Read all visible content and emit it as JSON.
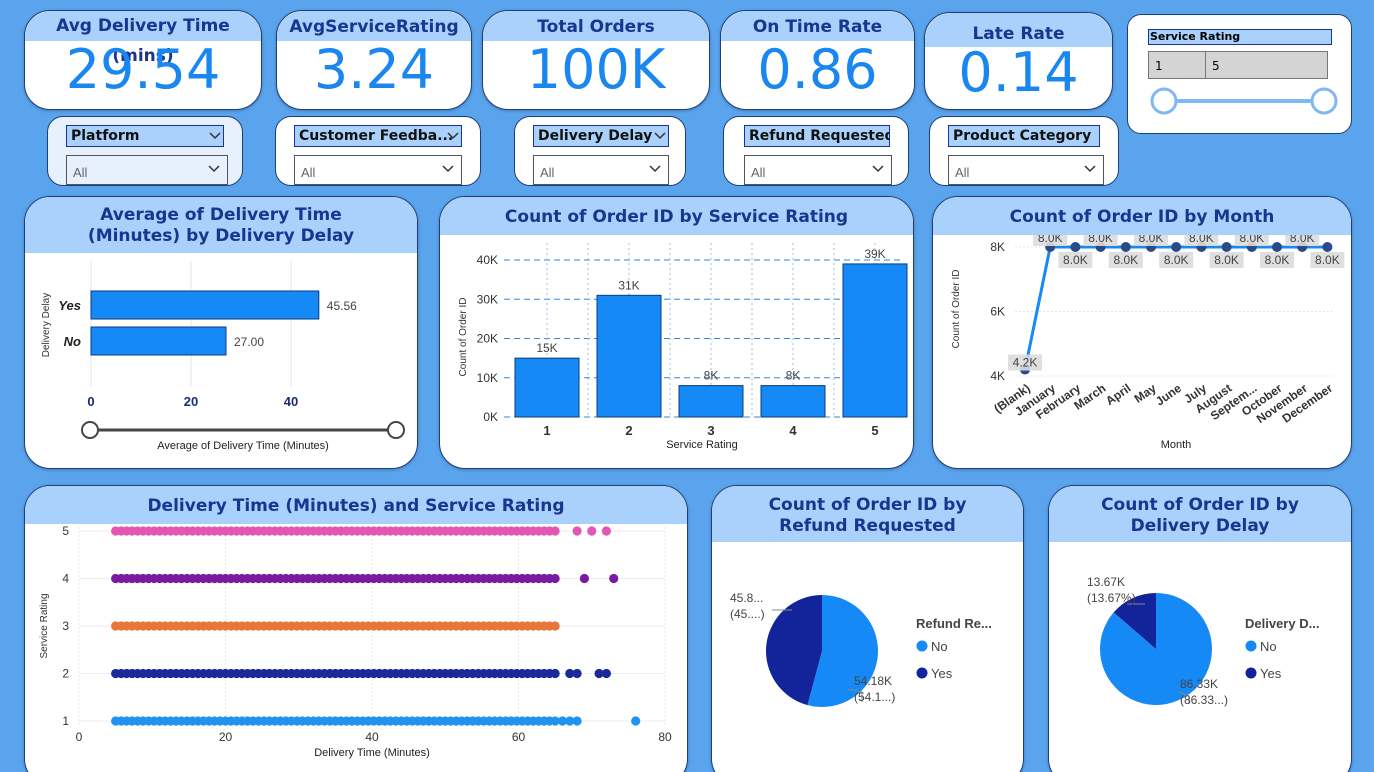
{
  "kpis": [
    {
      "title": "Avg Delivery Time (mins)",
      "value": "29.54"
    },
    {
      "title": "AvgServiceRating",
      "value": "3.24"
    },
    {
      "title": "Total Orders",
      "value": "100K"
    },
    {
      "title": "On Time Rate",
      "value": "0.86"
    },
    {
      "title": "Late Rate",
      "value": "0.14"
    }
  ],
  "service_slicer": {
    "title": "Service Rating",
    "min": "1",
    "max": "5"
  },
  "slicers": [
    {
      "title": "Platform",
      "value": "All"
    },
    {
      "title": "Customer Feedba...",
      "value": "All"
    },
    {
      "title": "Delivery Delay",
      "value": "All"
    },
    {
      "title": "Refund Requested",
      "value": "All"
    },
    {
      "title": "Product Category",
      "value": "All"
    }
  ],
  "colors": {
    "bar": "#1589f5",
    "dark": "#13239a",
    "head": "#a9d1fb",
    "title": "#1a3590"
  },
  "chart_data": [
    {
      "type": "bar",
      "orientation": "horizontal",
      "title": "Average of Delivery Time (Minutes) by Delivery Delay",
      "categories": [
        "Yes",
        "No"
      ],
      "values": [
        45.56,
        27.0
      ],
      "value_labels": [
        "45.56",
        "27.00"
      ],
      "xlabel": "Average of Delivery Time (Minutes)",
      "ylabel": "Delivery Delay",
      "xticks": [
        "0",
        "20",
        "40"
      ],
      "xlim": [
        0,
        50
      ]
    },
    {
      "type": "bar",
      "title": "Count of Order ID by Service Rating",
      "categories": [
        "1",
        "2",
        "3",
        "4",
        "5"
      ],
      "values": [
        15000,
        31000,
        8000,
        8000,
        39000
      ],
      "value_labels": [
        "15K",
        "31K",
        "8K",
        "8K",
        "39K"
      ],
      "xlabel": "Service Rating",
      "ylabel": "Count of Order ID",
      "yticks": [
        "0K",
        "10K",
        "20K",
        "30K",
        "40K"
      ],
      "ylim": [
        0,
        40000
      ]
    },
    {
      "type": "line",
      "title": "Count of Order ID by Month",
      "categories": [
        "(Blank)",
        "January",
        "February",
        "March",
        "April",
        "May",
        "June",
        "July",
        "August",
        "Septem...",
        "October",
        "November",
        "December"
      ],
      "values": [
        4200,
        8000,
        8000,
        8000,
        8000,
        8000,
        8000,
        8000,
        8000,
        8000,
        8000,
        8000,
        8000
      ],
      "value_labels": [
        "4.2K",
        "8.0K",
        "8.0K",
        "8.0K",
        "8.0K",
        "8.0K",
        "8.0K",
        "8.0K",
        "8.0K",
        "8.0K",
        "8.0K",
        "8.0K",
        "8.0K"
      ],
      "xlabel": "Month",
      "ylabel": "Count of Order ID",
      "yticks": [
        "4K",
        "6K",
        "8K"
      ],
      "ylim": [
        4000,
        8000
      ]
    },
    {
      "type": "scatter",
      "title": "Delivery Time (Minutes) and Service Rating",
      "xlabel": "Delivery Time (Minutes)",
      "ylabel": "Service Rating",
      "xticks": [
        "0",
        "20",
        "40",
        "60",
        "80"
      ],
      "yticks": [
        "1",
        "2",
        "3",
        "4",
        "5"
      ],
      "xlim": [
        0,
        80
      ],
      "ylim": [
        1,
        5
      ],
      "series": [
        {
          "y": 5,
          "color": "#e356b4",
          "x_from": 5,
          "x_to": 65,
          "extra": [
            68,
            70,
            72
          ]
        },
        {
          "y": 4,
          "color": "#7a1aa0",
          "x_from": 5,
          "x_to": 65,
          "extra": [
            69,
            73
          ]
        },
        {
          "y": 3,
          "color": "#e8753a",
          "x_from": 5,
          "x_to": 65,
          "extra": []
        },
        {
          "y": 2,
          "color": "#1a2a9a",
          "x_from": 5,
          "x_to": 65,
          "extra": [
            67,
            68,
            71,
            72
          ]
        },
        {
          "y": 1,
          "color": "#1f93ef",
          "x_from": 5,
          "x_to": 65,
          "extra": [
            66,
            67,
            68,
            76
          ]
        }
      ]
    },
    {
      "type": "pie",
      "title": "Count of Order ID by Refund Requested",
      "legend_title": "Refund Re...",
      "slices": [
        {
          "label": "No",
          "value": 54.18,
          "color": "#1589f5",
          "l1": "54.18K",
          "l2": "(54.1...)"
        },
        {
          "label": "Yes",
          "value": 45.82,
          "color": "#13239a",
          "l1": "45.8...",
          "l2": "(45....)"
        }
      ]
    },
    {
      "type": "pie",
      "title": "Count of Order ID by Delivery Delay",
      "legend_title": "Delivery D...",
      "slices": [
        {
          "label": "No",
          "value": 86.33,
          "color": "#1589f5",
          "l1": "86.33K",
          "l2": "(86.33...)"
        },
        {
          "label": "Yes",
          "value": 13.67,
          "color": "#13239a",
          "l1": "13.67K",
          "l2": "(13.67%)"
        }
      ]
    }
  ]
}
